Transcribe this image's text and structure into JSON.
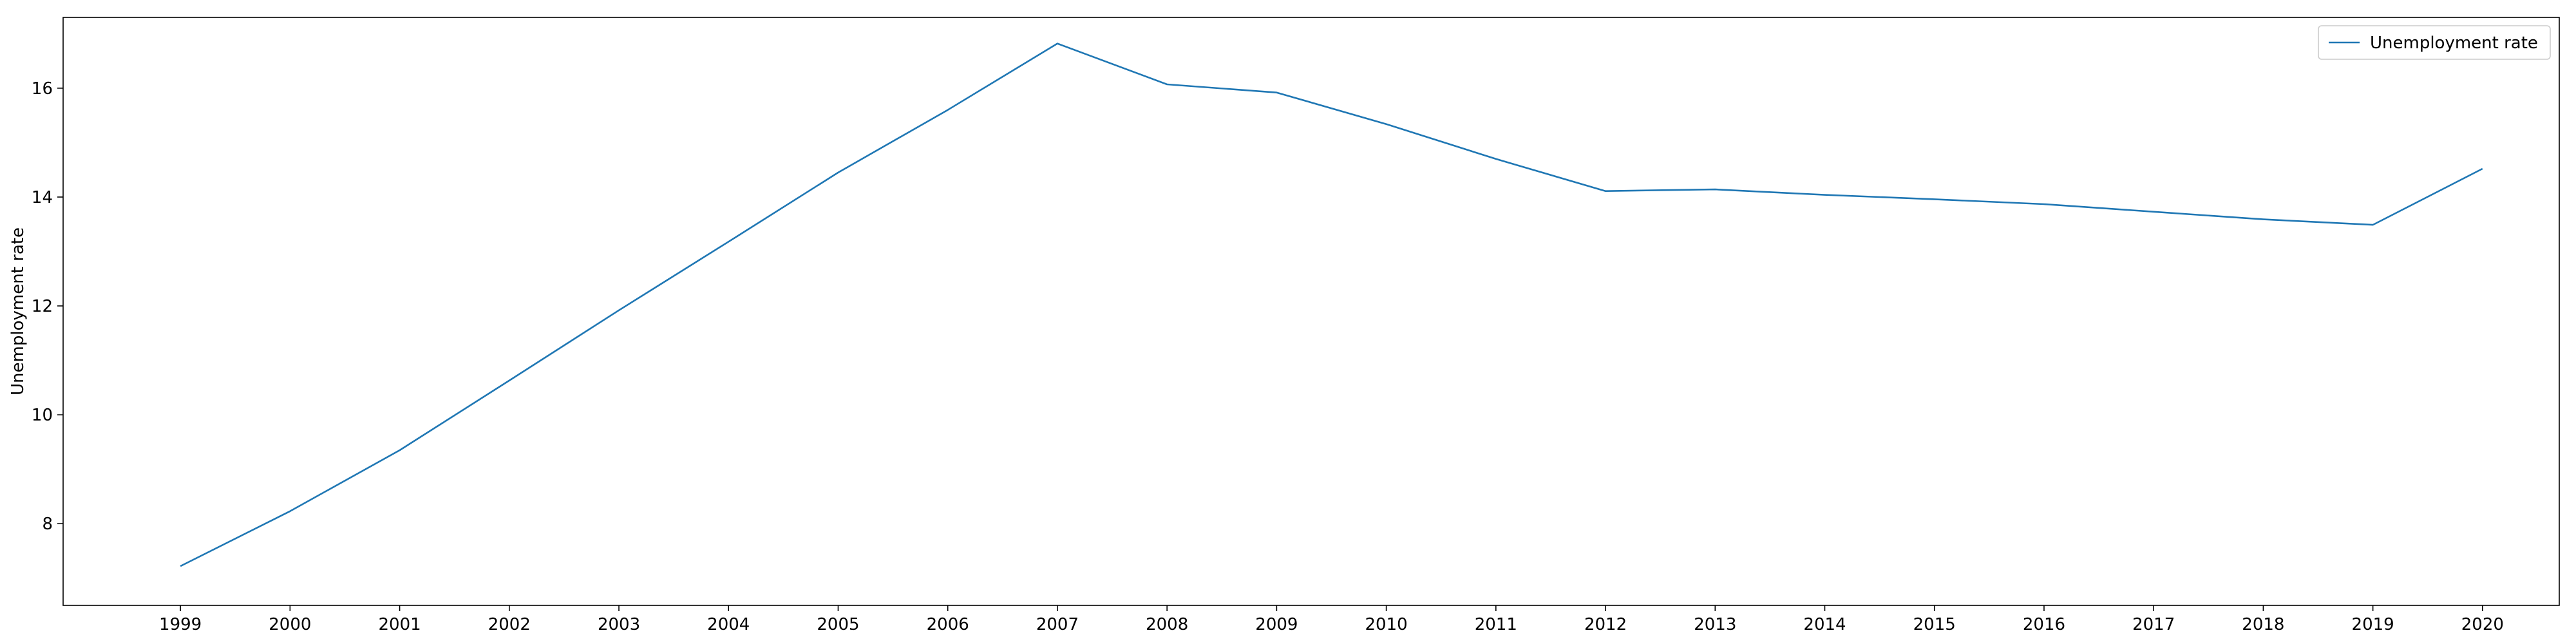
{
  "chart_data": {
    "type": "line",
    "title": "",
    "xlabel": "",
    "ylabel": "Unemployment rate",
    "x": [
      "1999",
      "2000",
      "2001",
      "2002",
      "2003",
      "2004",
      "2005",
      "2006",
      "2007",
      "2008",
      "2009",
      "2010",
      "2011",
      "2012",
      "2013",
      "2014",
      "2015",
      "2016",
      "2017",
      "2018",
      "2019",
      "2020"
    ],
    "series": [
      {
        "name": "Unemployment rate",
        "color": "#1f77b4",
        "values": [
          7.22,
          8.23,
          9.35,
          10.63,
          11.92,
          13.18,
          14.45,
          15.6,
          16.82,
          16.07,
          15.92,
          15.34,
          14.7,
          14.11,
          14.14,
          14.04,
          13.96,
          13.87,
          13.73,
          13.59,
          13.49,
          14.52
        ]
      }
    ],
    "xlim_index": [
      -1.07,
      21.7
    ],
    "ylim": [
      6.5,
      17.3
    ],
    "yticks": [
      8,
      10,
      12,
      14,
      16
    ],
    "grid": false,
    "legend": "upper right"
  }
}
